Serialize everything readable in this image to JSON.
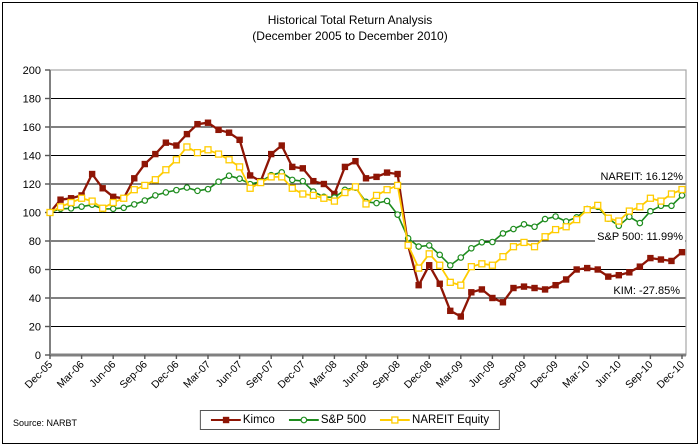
{
  "chart_data": {
    "type": "line",
    "title_line1": "Historical Total Return Analysis",
    "title_line2": "(December 2005 to December 2010)",
    "source": "Source: NARBT",
    "x_frequency": "monthly",
    "x_start_label": "Dec-05",
    "x_end_label": "Dec-10",
    "x_tick_labels": [
      "Dec-05",
      "Mar-06",
      "Jun-06",
      "Sep-06",
      "Dec-06",
      "Mar-07",
      "Jun-07",
      "Sep-07",
      "Dec-07",
      "Mar-08",
      "Jun-08",
      "Sep-08",
      "Dec-08",
      "Mar-09",
      "Jun-09",
      "Sep-09",
      "Dec-09",
      "Mar-10",
      "Jun-10",
      "Sep-10",
      "Dec-10"
    ],
    "ylim": [
      0,
      200
    ],
    "y_tick_step": 20,
    "grid": "horizontal",
    "legend_position": "bottom-center",
    "axis_color": "#808080",
    "gridline_color": "#000000",
    "plot_border_color": "#a6a6a6",
    "series": [
      {
        "name": "Kimco",
        "color": "#8E1505",
        "marker": "filled-square",
        "final_return_pct": -27.85,
        "values": [
          100,
          109,
          110,
          112,
          127,
          117,
          111,
          110,
          124,
          134,
          141,
          149,
          147,
          155,
          162,
          163,
          158,
          156,
          151,
          126,
          122,
          141,
          147,
          132,
          131,
          122,
          120,
          113,
          132,
          136,
          124,
          125,
          128,
          127,
          77,
          49,
          63,
          50,
          31,
          27,
          44,
          46,
          40,
          37,
          47,
          48,
          47,
          46,
          49,
          53,
          60,
          61,
          60,
          55,
          56,
          58,
          62,
          68,
          67,
          66,
          72.15
        ]
      },
      {
        "name": "S&P 500",
        "color": "#1E8C1E",
        "marker": "open-circle",
        "final_return_pct": 11.99,
        "values": [
          100,
          102.6,
          102.9,
          104.1,
          105.5,
          102.5,
          102.6,
          103.3,
          105.7,
          108.4,
          112,
          114.1,
          115.7,
          117.5,
          115.2,
          116.4,
          121.6,
          125.8,
          123.7,
          119.9,
          121.7,
          126.2,
          128.2,
          122.9,
          122,
          114.7,
          111,
          110.5,
          115.9,
          117.4,
          107.5,
          106.6,
          108.1,
          98.5,
          81.9,
          76.1,
          76.9,
          70.3,
          62.9,
          68.4,
          74.9,
          79.1,
          79.3,
          85.3,
          88.4,
          91.7,
          90,
          95.4,
          97.2,
          93.7,
          96.6,
          102.4,
          104,
          95.7,
          90.7,
          97,
          92.6,
          100.9,
          104.7,
          104.7,
          111.99
        ]
      },
      {
        "name": "NAREIT Equity",
        "color": "#FFCC00",
        "marker": "open-square",
        "final_return_pct": 16.12,
        "values": [
          100,
          104,
          107,
          110,
          108,
          103,
          107,
          110,
          116,
          119,
          123,
          130,
          137,
          146,
          142,
          144,
          141,
          137,
          132,
          117,
          121,
          125,
          125,
          117,
          113,
          112,
          110,
          108,
          114,
          118,
          106,
          112,
          116,
          119,
          77,
          61,
          71,
          63,
          51,
          49,
          62,
          64,
          63,
          69,
          76,
          79,
          76,
          83,
          88,
          90,
          95,
          102,
          105,
          96,
          94,
          101,
          104,
          110,
          108,
          113,
          116.12
        ]
      }
    ],
    "annotations": [
      {
        "text": "NAREIT: 16.12%"
      },
      {
        "text": "S&P 500: 11.99%"
      },
      {
        "text": "KIM: -27.85%"
      }
    ]
  }
}
